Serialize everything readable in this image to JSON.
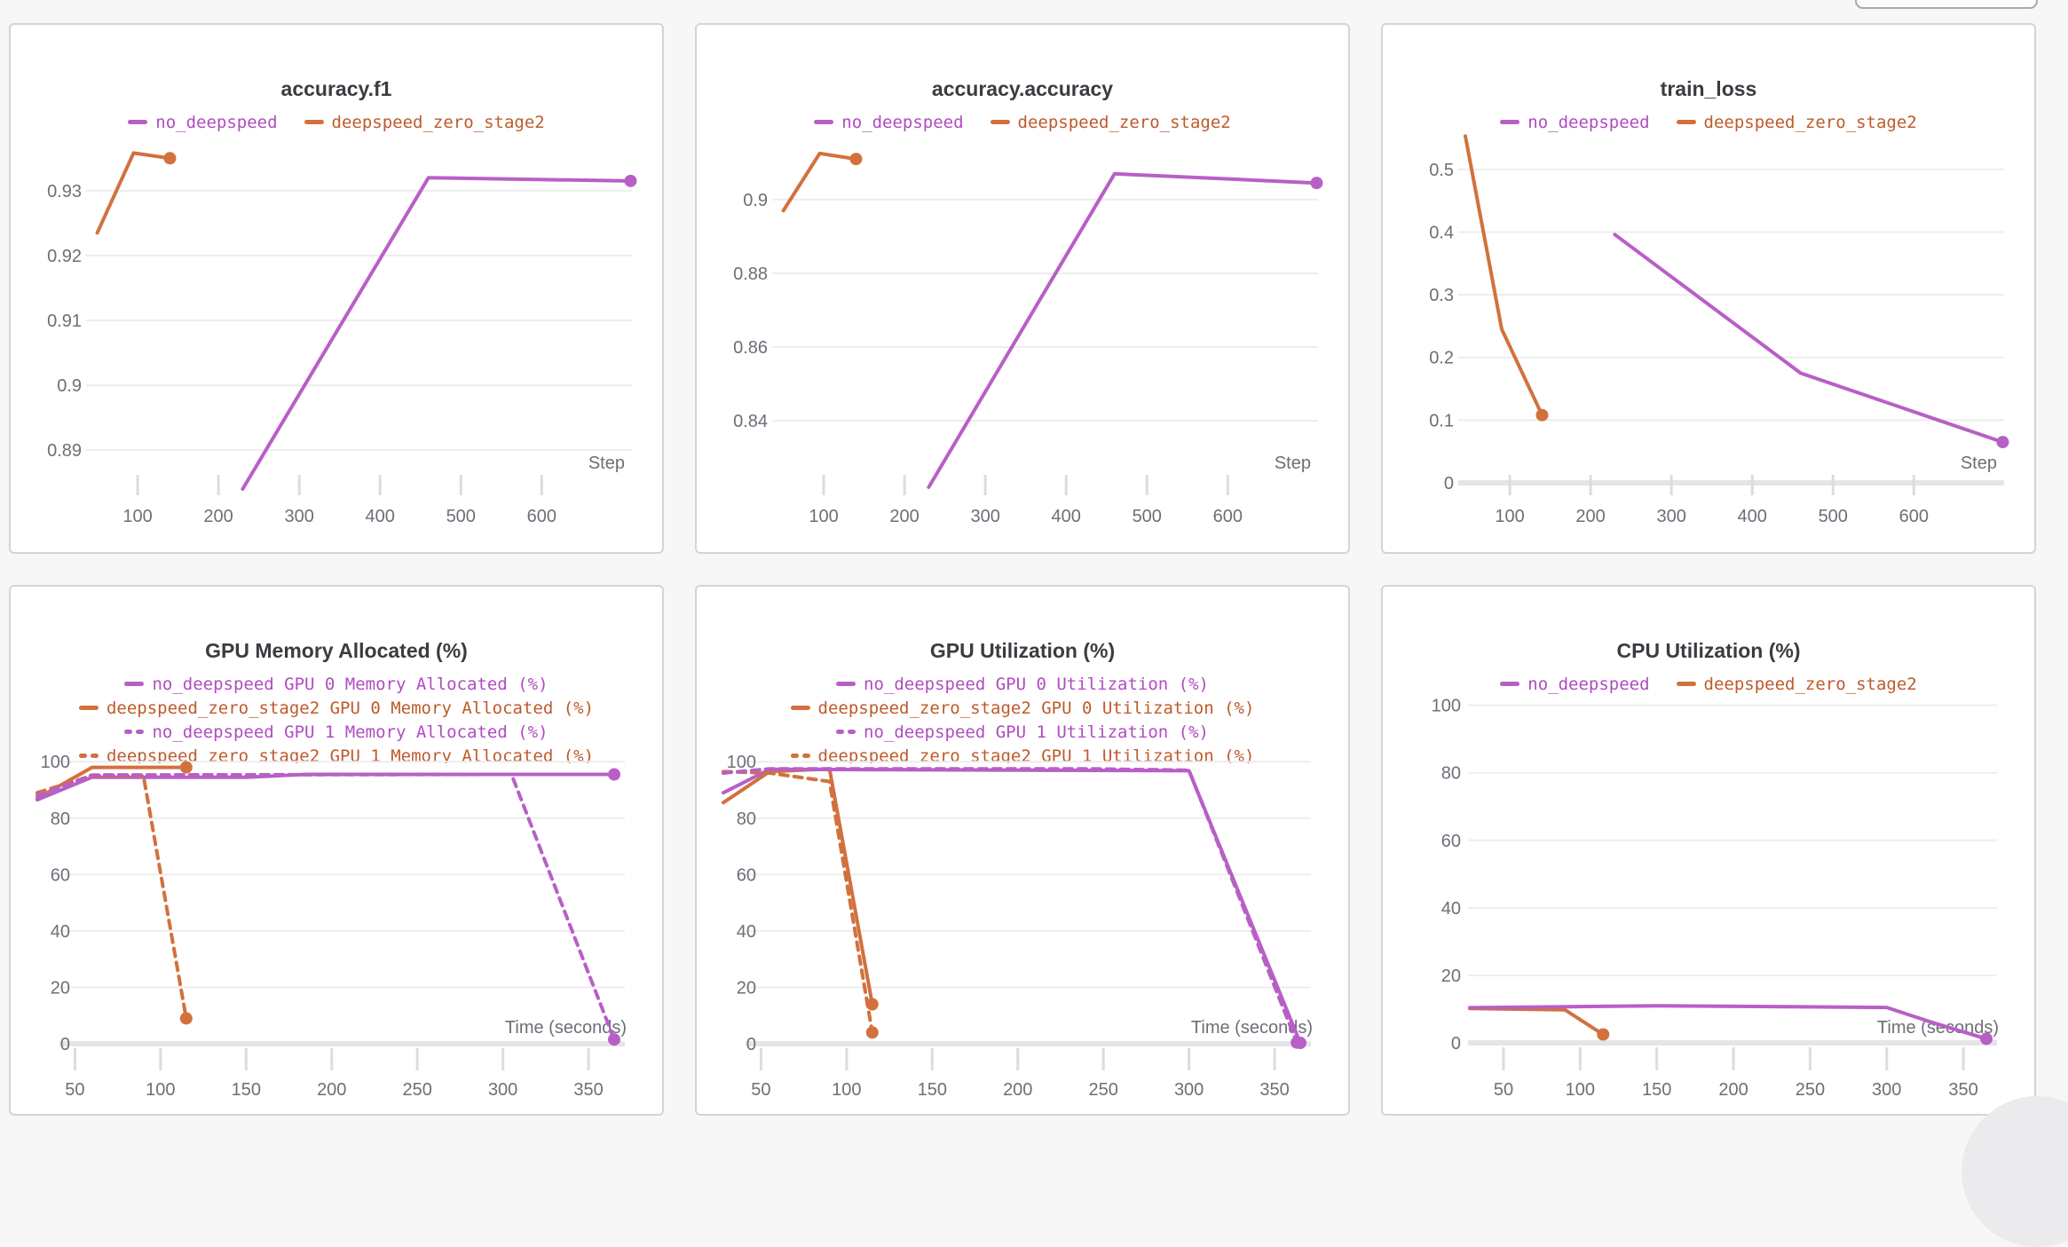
{
  "page": {
    "background": "#f7f7f8",
    "colors": {
      "purple": "#b85fc6",
      "purple_text": "#b04cc0",
      "orange": "#d2713e",
      "orange_text": "#bf5a2b",
      "title": "#3b3b41",
      "axis": "#6e6e78",
      "grid": "#ededef",
      "tick": "#dcdcdf",
      "baseline": "#e5e5e8",
      "card_border": "#d4d4d8",
      "card_bg": "#ffffff",
      "fab": "#ebebed"
    }
  },
  "chart_data": [
    {
      "type": "line",
      "title": "accuracy.f1",
      "x_label": "Step",
      "x_ticks": [
        100,
        200,
        300,
        400,
        500,
        600
      ],
      "x_range": [
        45,
        715
      ],
      "y_range": [
        0.884,
        0.9375
      ],
      "y_ticks": [
        0.89,
        0.9,
        0.91,
        0.92,
        0.93
      ],
      "y_tick_labels": [
        "0.89",
        "0.9",
        "0.91",
        "0.92",
        "0.93"
      ],
      "grid": true,
      "zero_baseline": false,
      "legend_layout": "row",
      "legend": [
        {
          "label": "no_deepspeed",
          "color": "purple",
          "dash": false
        },
        {
          "label": "deepspeed_zero_stage2",
          "color": "orange",
          "dash": false
        }
      ],
      "series": [
        {
          "name": "deepspeed_zero_stage2",
          "color": "orange",
          "dash": false,
          "x": [
            50,
            95,
            140
          ],
          "y": [
            0.9235,
            0.9358,
            0.935
          ]
        },
        {
          "name": "no_deepspeed",
          "color": "purple",
          "dash": false,
          "x": [
            230,
            460,
            710
          ],
          "y": [
            0.884,
            0.932,
            0.9315
          ]
        }
      ]
    },
    {
      "type": "line",
      "title": "accuracy.accuracy",
      "x_label": "Step",
      "x_ticks": [
        100,
        200,
        300,
        400,
        500,
        600
      ],
      "x_range": [
        45,
        715
      ],
      "y_range": [
        0.8215,
        0.9185
      ],
      "y_ticks": [
        0.84,
        0.86,
        0.88,
        0.9
      ],
      "y_tick_labels": [
        "0.84",
        "0.86",
        "0.88",
        "0.9"
      ],
      "grid": true,
      "zero_baseline": false,
      "legend_layout": "row",
      "legend": [
        {
          "label": "no_deepspeed",
          "color": "purple",
          "dash": false
        },
        {
          "label": "deepspeed_zero_stage2",
          "color": "orange",
          "dash": false
        }
      ],
      "series": [
        {
          "name": "deepspeed_zero_stage2",
          "color": "orange",
          "dash": false,
          "x": [
            50,
            95,
            140
          ],
          "y": [
            0.897,
            0.9125,
            0.911
          ]
        },
        {
          "name": "no_deepspeed",
          "color": "purple",
          "dash": false,
          "x": [
            230,
            460,
            710
          ],
          "y": [
            0.822,
            0.907,
            0.9045
          ]
        }
      ]
    },
    {
      "type": "line",
      "title": "train_loss",
      "x_label": "Step",
      "x_ticks": [
        100,
        200,
        300,
        400,
        500,
        600
      ],
      "x_range": [
        45,
        715
      ],
      "y_range": [
        0,
        0.555
      ],
      "y_ticks": [
        0,
        0.1,
        0.2,
        0.3,
        0.4,
        0.5
      ],
      "y_tick_labels": [
        "0",
        "0.1",
        "0.2",
        "0.3",
        "0.4",
        "0.5"
      ],
      "grid": true,
      "zero_baseline": true,
      "legend_layout": "row",
      "legend": [
        {
          "label": "no_deepspeed",
          "color": "purple",
          "dash": false
        },
        {
          "label": "deepspeed_zero_stage2",
          "color": "orange",
          "dash": false
        }
      ],
      "series": [
        {
          "name": "deepspeed_zero_stage2",
          "color": "orange",
          "dash": false,
          "x": [
            45,
            90,
            140
          ],
          "y": [
            0.553,
            0.245,
            0.108
          ]
        },
        {
          "name": "no_deepspeed",
          "color": "purple",
          "dash": false,
          "x": [
            230,
            460,
            710
          ],
          "y": [
            0.396,
            0.175,
            0.065
          ]
        }
      ]
    },
    {
      "type": "line",
      "title": "GPU Memory Allocated (%)",
      "x_label": "Time (seconds)",
      "x_ticks": [
        50,
        100,
        150,
        200,
        250,
        300,
        350
      ],
      "x_range": [
        28,
        365
      ],
      "y_range": [
        0,
        107
      ],
      "y_ticks": [
        0,
        20,
        40,
        60,
        80,
        100
      ],
      "y_tick_labels": [
        "0",
        "20",
        "40",
        "60",
        "80",
        "100"
      ],
      "grid": true,
      "zero_baseline": true,
      "legend_layout": "column",
      "legend": [
        {
          "label": "no_deepspeed GPU 0 Memory Allocated (%)",
          "color": "purple",
          "dash": false
        },
        {
          "label": "deepspeed_zero_stage2 GPU 0 Memory Allocated (%)",
          "color": "orange",
          "dash": false
        },
        {
          "label": "no_deepspeed GPU 1 Memory Allocated (%)",
          "color": "purple",
          "dash": true
        },
        {
          "label": "deepspeed_zero_stage2 GPU 1 Memory Allocated (%)",
          "color": "orange",
          "dash": true
        }
      ],
      "series": [
        {
          "name": "deepspeed_zero_stage2 GPU 0 Memory Allocated (%)",
          "color": "orange",
          "dash": false,
          "x": [
            28,
            60,
            115
          ],
          "y": [
            87,
            98,
            98
          ]
        },
        {
          "name": "no_deepspeed GPU 0 Memory Allocated (%)",
          "color": "purple",
          "dash": false,
          "x": [
            28,
            60,
            150,
            185,
            365
          ],
          "y": [
            86.5,
            94.5,
            94.5,
            95.5,
            95.5
          ]
        },
        {
          "name": "deepspeed_zero_stage2 GPU 1 Memory Allocated (%)",
          "color": "orange",
          "dash": true,
          "x": [
            28,
            60,
            90,
            115
          ],
          "y": [
            89,
            95,
            95,
            9
          ]
        },
        {
          "name": "no_deepspeed GPU 1 Memory Allocated (%)",
          "color": "purple",
          "dash": true,
          "x": [
            28,
            60,
            305,
            365
          ],
          "y": [
            88,
            95.3,
            95.5,
            1.5
          ]
        }
      ]
    },
    {
      "type": "line",
      "title": "GPU Utilization (%)",
      "x_label": "Time (seconds)",
      "x_ticks": [
        50,
        100,
        150,
        200,
        250,
        300,
        350
      ],
      "x_range": [
        28,
        365
      ],
      "y_range": [
        0,
        107
      ],
      "y_ticks": [
        0,
        20,
        40,
        60,
        80,
        100
      ],
      "y_tick_labels": [
        "0",
        "20",
        "40",
        "60",
        "80",
        "100"
      ],
      "grid": true,
      "zero_baseline": true,
      "legend_layout": "column",
      "legend": [
        {
          "label": "no_deepspeed GPU 0 Utilization (%)",
          "color": "purple",
          "dash": false
        },
        {
          "label": "deepspeed_zero_stage2 GPU 0 Utilization (%)",
          "color": "orange",
          "dash": false
        },
        {
          "label": "no_deepspeed GPU 1 Utilization (%)",
          "color": "purple",
          "dash": true
        },
        {
          "label": "deepspeed_zero_stage2 GPU 1 Utilization (%)",
          "color": "orange",
          "dash": true
        }
      ],
      "series": [
        {
          "name": "deepspeed_zero_stage2 GPU 0 Utilization (%)",
          "color": "orange",
          "dash": false,
          "x": [
            28,
            55,
            90,
            115
          ],
          "y": [
            85.5,
            96.5,
            97.5,
            14
          ]
        },
        {
          "name": "no_deepspeed GPU 0 Utilization (%)",
          "color": "purple",
          "dash": false,
          "x": [
            28,
            55,
            300,
            365
          ],
          "y": [
            89,
            97.3,
            96.8,
            0.3
          ]
        },
        {
          "name": "deepspeed_zero_stage2 GPU 1 Utilization (%)",
          "color": "orange",
          "dash": true,
          "x": [
            28,
            55,
            90,
            115
          ],
          "y": [
            96.5,
            96,
            93,
            4
          ]
        },
        {
          "name": "no_deepspeed GPU 1 Utilization (%)",
          "color": "purple",
          "dash": true,
          "x": [
            28,
            55,
            240,
            300,
            363
          ],
          "y": [
            96,
            97.5,
            97.5,
            97,
            0.4
          ]
        }
      ]
    },
    {
      "type": "line",
      "title": "CPU Utilization (%)",
      "x_label": "Time (seconds)",
      "x_ticks": [
        50,
        100,
        150,
        200,
        250,
        300,
        350
      ],
      "x_range": [
        28,
        365
      ],
      "y_range": [
        0,
        107
      ],
      "y_ticks": [
        0,
        20,
        40,
        60,
        80,
        100
      ],
      "y_tick_labels": [
        "0",
        "20",
        "40",
        "60",
        "80",
        "100"
      ],
      "grid": true,
      "zero_baseline": true,
      "legend_layout": "row",
      "legend": [
        {
          "label": "no_deepspeed",
          "color": "purple",
          "dash": false
        },
        {
          "label": "deepspeed_zero_stage2",
          "color": "orange",
          "dash": false
        }
      ],
      "series": [
        {
          "name": "deepspeed_zero_stage2",
          "color": "orange",
          "dash": false,
          "x": [
            28,
            90,
            115
          ],
          "y": [
            10.2,
            9.8,
            2.5
          ]
        },
        {
          "name": "no_deepspeed",
          "color": "purple",
          "dash": false,
          "x": [
            28,
            150,
            300,
            330,
            365
          ],
          "y": [
            10.4,
            11,
            10.5,
            6,
            1.2
          ]
        }
      ]
    }
  ]
}
